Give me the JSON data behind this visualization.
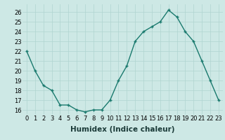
{
  "x": [
    0,
    1,
    2,
    3,
    4,
    5,
    6,
    7,
    8,
    9,
    10,
    11,
    12,
    13,
    14,
    15,
    16,
    17,
    18,
    19,
    20,
    21,
    22,
    23
  ],
  "y": [
    22,
    20,
    18.5,
    18,
    16.5,
    16.5,
    16,
    15.8,
    16,
    16,
    17,
    19,
    20.5,
    23,
    24,
    24.5,
    25,
    26.2,
    25.5,
    24,
    23,
    21,
    19,
    17
  ],
  "line_color": "#1a7a6e",
  "marker_color": "#1a7a6e",
  "bg_color": "#cde8e5",
  "grid_color": "#b0d4d0",
  "xlabel": "Humidex (Indice chaleur)",
  "ylim": [
    15.5,
    26.8
  ],
  "xlim": [
    -0.5,
    23.5
  ],
  "yticks": [
    16,
    17,
    18,
    19,
    20,
    21,
    22,
    23,
    24,
    25,
    26
  ],
  "xticks": [
    0,
    1,
    2,
    3,
    4,
    5,
    6,
    7,
    8,
    9,
    10,
    11,
    12,
    13,
    14,
    15,
    16,
    17,
    18,
    19,
    20,
    21,
    22,
    23
  ],
  "tick_label_fontsize": 6,
  "xlabel_fontsize": 7.5,
  "linewidth": 1.0,
  "markersize": 2.5
}
